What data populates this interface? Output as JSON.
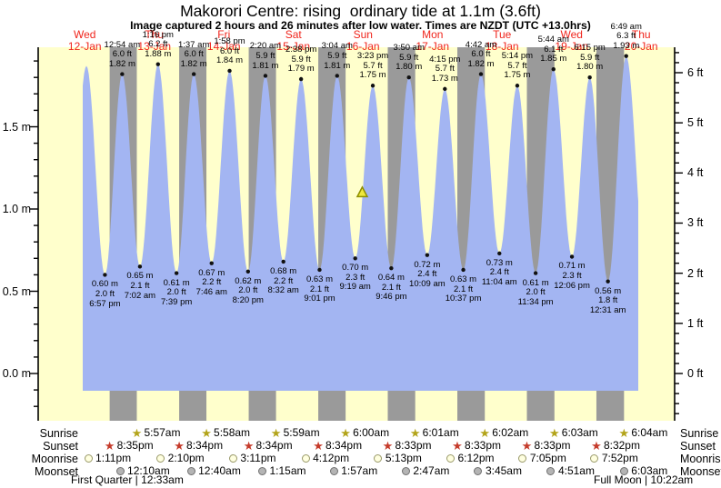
{
  "title": "Makorori Centre: rising  ordinary tide at 1.1m (3.6ft)",
  "subtitle": "Image captured 2 hours and 26 minutes after low water. Times are NZDT (UTC +13.0hrs)",
  "colors": {
    "plot_background": "#ffffcc",
    "night_band": "#9a9a9a",
    "tide_fill": "#a3b5f2",
    "axis": "#000000",
    "day_label_red": "#f0251c",
    "sunrise_star": "#b3a41a",
    "sunset_star": "#c53b2b",
    "moonrise_fill": "#ffffe0",
    "moonrise_border": "#99996a",
    "moonset_fill": "#b4b4b4",
    "moonset_border": "#707070",
    "current_marker_fill": "#eee83e",
    "current_marker_stroke": "#8f8f00"
  },
  "chart_data": {
    "type": "area",
    "title": "Makorori Centre: rising  ordinary tide at 1.1m (3.6ft)",
    "x_axis": "time (days, NZDT)",
    "days": [
      {
        "name": "Wed",
        "date": "12-Jan"
      },
      {
        "name": "Thu",
        "date": "13-Jan"
      },
      {
        "name": "Fri",
        "date": "14-Jan"
      },
      {
        "name": "Sat",
        "date": "15-Jan"
      },
      {
        "name": "Sun",
        "date": "16-Jan"
      },
      {
        "name": "Mon",
        "date": "17-Jan"
      },
      {
        "name": "Tue",
        "date": "18-Jan"
      },
      {
        "name": "Wed",
        "date": "19-Jan"
      },
      {
        "name": "Thu",
        "date": "20-Jan"
      }
    ],
    "y_axis_left": {
      "unit": "m",
      "ticks": [
        {
          "v": 0.0,
          "label": "0.0 m"
        },
        {
          "v": 0.5,
          "label": "0.5 m"
        },
        {
          "v": 1.0,
          "label": "1.0 m"
        },
        {
          "v": 1.5,
          "label": "1.5 m"
        }
      ]
    },
    "y_axis_right": {
      "unit": "ft",
      "ticks": [
        {
          "v": 0,
          "label": "0 ft"
        },
        {
          "v": 1,
          "label": "1 ft"
        },
        {
          "v": 2,
          "label": "2 ft"
        },
        {
          "v": 3,
          "label": "3 ft"
        },
        {
          "v": 4,
          "label": "4 ft"
        },
        {
          "v": 5,
          "label": "5 ft"
        },
        {
          "v": 6,
          "label": "6 ft"
        }
      ]
    },
    "extremes": [
      {
        "type": "high",
        "day": 0,
        "time": "12:33 pm",
        "ft": null,
        "m": "1.87",
        "labeled": false,
        "estimated": true
      },
      {
        "type": "low",
        "day": 0,
        "time": "6:57 pm",
        "ft": "2.0",
        "m": "0.60"
      },
      {
        "type": "high",
        "day": 1,
        "time": "12:54 am",
        "ft": "6.0",
        "m": "1.82"
      },
      {
        "type": "low",
        "day": 1,
        "time": "7:02 am",
        "ft": "2.1",
        "m": "0.65"
      },
      {
        "type": "high",
        "day": 1,
        "time": "1:16 pm",
        "ft": "6.2",
        "m": "1.88"
      },
      {
        "type": "low",
        "day": 1,
        "time": "7:39 pm",
        "ft": "2.0",
        "m": "0.61"
      },
      {
        "type": "high",
        "day": 2,
        "time": "1:37 am",
        "ft": "6.0",
        "m": "1.82"
      },
      {
        "type": "low",
        "day": 2,
        "time": "7:46 am",
        "ft": "2.2",
        "m": "0.67"
      },
      {
        "type": "high",
        "day": 2,
        "time": "1:58 pm",
        "ft": "6.0",
        "m": "1.84"
      },
      {
        "type": "low",
        "day": 2,
        "time": "8:20 pm",
        "ft": "2.0",
        "m": "0.62"
      },
      {
        "type": "high",
        "day": 3,
        "time": "2:20 am",
        "ft": "5.9",
        "m": "1.81"
      },
      {
        "type": "low",
        "day": 3,
        "time": "8:32 am",
        "ft": "2.2",
        "m": "0.68"
      },
      {
        "type": "high",
        "day": 3,
        "time": "2:38 pm",
        "ft": "5.9",
        "m": "1.79"
      },
      {
        "type": "low",
        "day": 3,
        "time": "9:01 pm",
        "ft": "2.1",
        "m": "0.63"
      },
      {
        "type": "high",
        "day": 4,
        "time": "3:04 am",
        "ft": "5.9",
        "m": "1.81"
      },
      {
        "type": "low",
        "day": 4,
        "time": "9:19 am",
        "ft": "2.3",
        "m": "0.70"
      },
      {
        "type": "high",
        "day": 4,
        "time": "3:23 pm",
        "ft": "5.7",
        "m": "1.75"
      },
      {
        "type": "low",
        "day": 4,
        "time": "9:46 pm",
        "ft": "2.1",
        "m": "0.64"
      },
      {
        "type": "high",
        "day": 5,
        "time": "3:50 am",
        "ft": "5.9",
        "m": "1.80"
      },
      {
        "type": "low",
        "day": 5,
        "time": "10:09 am",
        "ft": "2.4",
        "m": "0.72"
      },
      {
        "type": "high",
        "day": 5,
        "time": "4:15 pm",
        "ft": "5.7",
        "m": "1.73"
      },
      {
        "type": "low",
        "day": 5,
        "time": "10:37 pm",
        "ft": "2.1",
        "m": "0.63"
      },
      {
        "type": "high",
        "day": 6,
        "time": "4:42 am",
        "ft": "6.0",
        "m": "1.82"
      },
      {
        "type": "low",
        "day": 6,
        "time": "11:04 am",
        "ft": "2.4",
        "m": "0.73"
      },
      {
        "type": "high",
        "day": 6,
        "time": "5:14 pm",
        "ft": "5.7",
        "m": "1.75"
      },
      {
        "type": "low",
        "day": 6,
        "time": "11:34 pm",
        "ft": "2.0",
        "m": "0.61"
      },
      {
        "type": "high",
        "day": 7,
        "time": "5:44 am",
        "ft": "6.1",
        "m": "1.85"
      },
      {
        "type": "low",
        "day": 7,
        "time": "12:06 pm",
        "ft": "2.3",
        "m": "0.71"
      },
      {
        "type": "high",
        "day": 7,
        "time": "6:15 pm",
        "ft": "5.9",
        "m": "1.80"
      },
      {
        "type": "low",
        "day": 8,
        "time": "12:31 am",
        "ft": "1.8",
        "m": "0.56"
      },
      {
        "type": "high",
        "day": 8,
        "time": "6:49 am",
        "ft": "6.3",
        "m": "1.93"
      }
    ],
    "current_marker": {
      "day": 4,
      "time": "11:45 am",
      "m": 1.1,
      "note": "current time marker, tide 1.1m rising"
    },
    "sun_moon": {
      "sunrise": {
        "label": "Sunrise",
        "times": [
          {
            "day": 1,
            "time": "5:57am"
          },
          {
            "day": 2,
            "time": "5:58am"
          },
          {
            "day": 3,
            "time": "5:59am"
          },
          {
            "day": 4,
            "time": "6:00am"
          },
          {
            "day": 5,
            "time": "6:01am"
          },
          {
            "day": 6,
            "time": "6:02am"
          },
          {
            "day": 7,
            "time": "6:03am"
          },
          {
            "day": 8,
            "time": "6:04am"
          }
        ]
      },
      "sunset": {
        "label": "Sunset",
        "times": [
          {
            "day": 0,
            "time": "8:35pm"
          },
          {
            "day": 1,
            "time": "8:34pm"
          },
          {
            "day": 2,
            "time": "8:34pm"
          },
          {
            "day": 3,
            "time": "8:34pm"
          },
          {
            "day": 4,
            "time": "8:33pm"
          },
          {
            "day": 5,
            "time": "8:33pm"
          },
          {
            "day": 6,
            "time": "8:33pm"
          },
          {
            "day": 7,
            "time": "8:32pm"
          }
        ]
      },
      "moonrise": {
        "label": "Moonrise",
        "times": [
          {
            "day": 0,
            "time": "1:11pm"
          },
          {
            "day": 1,
            "time": "2:10pm"
          },
          {
            "day": 2,
            "time": "3:11pm"
          },
          {
            "day": 3,
            "time": "4:12pm"
          },
          {
            "day": 4,
            "time": "5:13pm"
          },
          {
            "day": 5,
            "time": "6:12pm"
          },
          {
            "day": 6,
            "time": "7:05pm"
          },
          {
            "day": 7,
            "time": "7:52pm"
          }
        ]
      },
      "moonset": {
        "label": "Moonset",
        "times": [
          {
            "day": 1,
            "time": "12:10am"
          },
          {
            "day": 2,
            "time": "12:40am"
          },
          {
            "day": 3,
            "time": "1:15am"
          },
          {
            "day": 4,
            "time": "1:57am"
          },
          {
            "day": 5,
            "time": "2:47am"
          },
          {
            "day": 6,
            "time": "3:45am"
          },
          {
            "day": 7,
            "time": "4:51am"
          },
          {
            "day": 8,
            "time": "6:03am"
          }
        ]
      }
    },
    "moon_phases": [
      {
        "text": "First Quarter | 12:33am",
        "position": "left"
      },
      {
        "text": "Full Moon | 10:22am",
        "position": "right"
      }
    ]
  }
}
